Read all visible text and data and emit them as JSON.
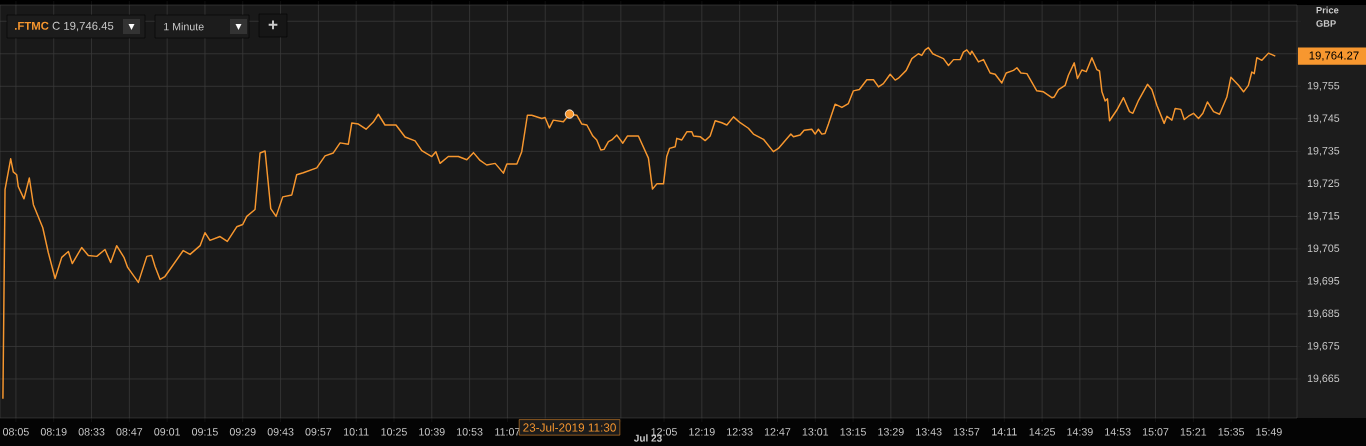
{
  "chart_data": {
    "type": "line",
    "title": ".FTMC",
    "subtitle": "C 19,746.45",
    "ylabel": "Price GBP",
    "grid": true,
    "xlim": [
      7.985,
      15.99
    ],
    "ylim": [
      19653,
      19780
    ],
    "xticks": [
      {
        "value": 8.0833,
        "label": "08:05"
      },
      {
        "value": 8.3167,
        "label": "08:19"
      },
      {
        "value": 8.55,
        "label": "08:33"
      },
      {
        "value": 8.7833,
        "label": "08:47"
      },
      {
        "value": 9.0167,
        "label": "09:01"
      },
      {
        "value": 9.25,
        "label": "09:15"
      },
      {
        "value": 9.4833,
        "label": "09:29"
      },
      {
        "value": 9.7167,
        "label": "09:43"
      },
      {
        "value": 9.95,
        "label": "09:57"
      },
      {
        "value": 10.1833,
        "label": "10:11"
      },
      {
        "value": 10.4167,
        "label": "10:25"
      },
      {
        "value": 10.65,
        "label": "10:39"
      },
      {
        "value": 10.8833,
        "label": "10:53"
      },
      {
        "value": 11.1167,
        "label": "11:07"
      },
      {
        "value": 11.35,
        "label": null
      },
      {
        "value": 11.5833,
        "label": null
      },
      {
        "value": 11.8167,
        "label": null
      },
      {
        "value": 12.0833,
        "label": "12:05"
      },
      {
        "value": 12.3167,
        "label": "12:19"
      },
      {
        "value": 12.55,
        "label": "12:33"
      },
      {
        "value": 12.7833,
        "label": "12:47"
      },
      {
        "value": 13.0167,
        "label": "13:01"
      },
      {
        "value": 13.25,
        "label": "13:15"
      },
      {
        "value": 13.4833,
        "label": "13:29"
      },
      {
        "value": 13.7167,
        "label": "13:43"
      },
      {
        "value": 13.95,
        "label": "13:57"
      },
      {
        "value": 14.1833,
        "label": "14:11"
      },
      {
        "value": 14.4167,
        "label": "14:25"
      },
      {
        "value": 14.65,
        "label": "14:39"
      },
      {
        "value": 14.8833,
        "label": "14:53"
      },
      {
        "value": 15.1167,
        "label": "15:07"
      },
      {
        "value": 15.35,
        "label": "15:21"
      },
      {
        "value": 15.5833,
        "label": "15:35"
      },
      {
        "value": 15.8167,
        "label": "15:49"
      }
    ],
    "yticks": [
      {
        "value": 19665,
        "label": "19,665"
      },
      {
        "value": 19675,
        "label": "19,675"
      },
      {
        "value": 19685,
        "label": "19,685"
      },
      {
        "value": 19695,
        "label": "19,695"
      },
      {
        "value": 19705,
        "label": "19,705"
      },
      {
        "value": 19715,
        "label": "19,715"
      },
      {
        "value": 19725,
        "label": "19,725"
      },
      {
        "value": 19735,
        "label": "19,735"
      },
      {
        "value": 19745,
        "label": "19,745"
      },
      {
        "value": 19755,
        "label": "19,755"
      },
      {
        "value": 19765,
        "label": null
      },
      {
        "value": 19775,
        "label": null
      }
    ],
    "annotations": [
      "23-Jul-2019 11:30",
      "19,764.27",
      "Jul 23",
      "1 Minute",
      "+"
    ],
    "series": [
      {
        "color": "#f7972f",
        "x": [
          8.003,
          8.016,
          8.051,
          8.067,
          8.088,
          8.098,
          8.133,
          8.166,
          8.191,
          8.249,
          8.283,
          8.325,
          8.366,
          8.407,
          8.431,
          8.489,
          8.53,
          8.582,
          8.633,
          8.668,
          8.705,
          8.75,
          8.773,
          8.839,
          8.891,
          8.921,
          8.942,
          8.973,
          9.003,
          9.116,
          9.158,
          9.22,
          9.25,
          9.281,
          9.343,
          9.388,
          9.446,
          9.483,
          9.508,
          9.559,
          9.59,
          9.621,
          9.656,
          9.689,
          9.73,
          9.786,
          9.816,
          9.857,
          9.94,
          9.991,
          10.042,
          10.084,
          10.135,
          10.156,
          10.197,
          10.244,
          10.289,
          10.32,
          10.361,
          10.429,
          10.485,
          10.547,
          10.588,
          10.65,
          10.675,
          10.701,
          10.752,
          10.814,
          10.866,
          10.907,
          10.948,
          10.989,
          11.041,
          11.092,
          11.113,
          11.175,
          11.205,
          11.24,
          11.267,
          11.298,
          11.329,
          11.349,
          11.376,
          11.4,
          11.462,
          11.5,
          11.545,
          11.576,
          11.607,
          11.644,
          11.668,
          11.693,
          11.713,
          11.74,
          11.761,
          11.792,
          11.829,
          11.857,
          11.925,
          11.987,
          12.012,
          12.039,
          12.08,
          12.1,
          12.117,
          12.152,
          12.162,
          12.193,
          12.224,
          12.255,
          12.265,
          12.306,
          12.337,
          12.368,
          12.399,
          12.44,
          12.471,
          12.512,
          12.553,
          12.604,
          12.635,
          12.697,
          12.758,
          12.789,
          12.866,
          12.882,
          12.923,
          12.948,
          12.995,
          13.016,
          13.036,
          13.057,
          13.077,
          13.098,
          13.139,
          13.181,
          13.221,
          13.252,
          13.289,
          13.335,
          13.376,
          13.407,
          13.437,
          13.479,
          13.51,
          13.53,
          13.578,
          13.613,
          13.653,
          13.674,
          13.695,
          13.715,
          13.742,
          13.763,
          13.808,
          13.839,
          13.87,
          13.911,
          13.931,
          13.952,
          13.973,
          13.983,
          14.024,
          14.055,
          14.096,
          14.127,
          14.168,
          14.195,
          14.24,
          14.261,
          14.286,
          14.323,
          14.384,
          14.425,
          14.477,
          14.491,
          14.518,
          14.559,
          14.579,
          14.615,
          14.635,
          14.662,
          14.689,
          14.724,
          14.755,
          14.771,
          14.786,
          14.806,
          14.82,
          14.833,
          14.878,
          14.919,
          14.956,
          14.977,
          15.012,
          15.067,
          15.094,
          15.125,
          15.17,
          15.187,
          15.218,
          15.238,
          15.273,
          15.294,
          15.32,
          15.351,
          15.382,
          15.409,
          15.437,
          15.475,
          15.512,
          15.557,
          15.582,
          15.629,
          15.66,
          15.69,
          15.711,
          15.726,
          15.742,
          15.773,
          15.814,
          15.856
        ],
        "values": [
          19658.9,
          19723.2,
          19732.7,
          19728.7,
          19727.8,
          19724.1,
          19720.4,
          19726.8,
          19718.6,
          19711.5,
          19703.9,
          19695.9,
          19702.4,
          19704.2,
          19700.5,
          19705.4,
          19703.0,
          19702.7,
          19704.8,
          19700.8,
          19706.0,
          19702.4,
          19699.3,
          19694.7,
          19702.7,
          19703.0,
          19699.6,
          19695.6,
          19696.5,
          19704.5,
          19703.3,
          19706.0,
          19710.0,
          19707.6,
          19708.8,
          19707.3,
          19711.8,
          19712.5,
          19715.0,
          19717.1,
          19734.5,
          19735.1,
          19717.4,
          19715.0,
          19721.0,
          19721.6,
          19727.8,
          19728.4,
          19729.9,
          19733.6,
          19734.5,
          19737.6,
          19737.2,
          19743.7,
          19743.4,
          19741.8,
          19744.0,
          19746.4,
          19743.1,
          19743.1,
          19739.4,
          19738.2,
          19735.2,
          19733.4,
          19734.9,
          19731.3,
          19733.4,
          19733.4,
          19732.4,
          19734.6,
          19732.2,
          19730.8,
          19731.3,
          19728.3,
          19731.1,
          19731.1,
          19734.9,
          19746.1,
          19746.1,
          19745.6,
          19745.1,
          19745.4,
          19742.2,
          19744.6,
          19744.1,
          19746.4,
          19746.1,
          19743.4,
          19743.1,
          19739.7,
          19738.5,
          19735.4,
          19735.6,
          19738.0,
          19738.5,
          19740.0,
          19737.5,
          19739.7,
          19739.7,
          19732.9,
          19723.4,
          19725.0,
          19725.0,
          19733.4,
          19735.9,
          19736.4,
          19739.0,
          19738.5,
          19741.0,
          19741.0,
          19739.7,
          19739.5,
          19738.3,
          19739.7,
          19744.4,
          19743.8,
          19743.1,
          19745.6,
          19743.8,
          19742.1,
          19740.3,
          19738.7,
          19734.9,
          19735.9,
          19740.3,
          19739.5,
          19740.0,
          19741.5,
          19741.8,
          19740.3,
          19741.8,
          19740.3,
          19740.5,
          19743.4,
          19749.5,
          19748.5,
          19749.7,
          19753.6,
          19754.0,
          19757.0,
          19757.0,
          19754.8,
          19755.8,
          19758.7,
          19756.9,
          19757.5,
          19759.9,
          19763.5,
          19765.0,
          19764.5,
          19766.2,
          19766.9,
          19765.0,
          19764.5,
          19763.5,
          19761.4,
          19763.2,
          19763.2,
          19765.5,
          19766.2,
          19764.8,
          19765.8,
          19762.5,
          19763.2,
          19759.1,
          19758.7,
          19756.0,
          19759.1,
          19759.9,
          19760.7,
          19759.1,
          19758.9,
          19753.6,
          19753.3,
          19751.5,
          19751.7,
          19754.0,
          19755.3,
          19758.4,
          19762.2,
          19757.4,
          19760.0,
          19759.5,
          19763.8,
          19760.1,
          19759.7,
          19753.3,
          19750.5,
          19751.2,
          19744.4,
          19747.7,
          19751.5,
          19747.2,
          19746.7,
          19750.7,
          19755.6,
          19754.0,
          19749.2,
          19743.6,
          19745.8,
          19744.6,
          19748.2,
          19747.9,
          19744.8,
          19745.8,
          19746.7,
          19745.1,
          19746.7,
          19750.2,
          19747.2,
          19746.4,
          19751.7,
          19757.8,
          19755.3,
          19753.3,
          19755.3,
          19759.4,
          19758.9,
          19763.8,
          19763.0,
          19765.2,
          19764.27
        ]
      },
      {
        "type": "scatter",
        "color": "#f7972f",
        "x": [
          11.5
        ],
        "values": [
          19746.45
        ]
      }
    ]
  }
}
